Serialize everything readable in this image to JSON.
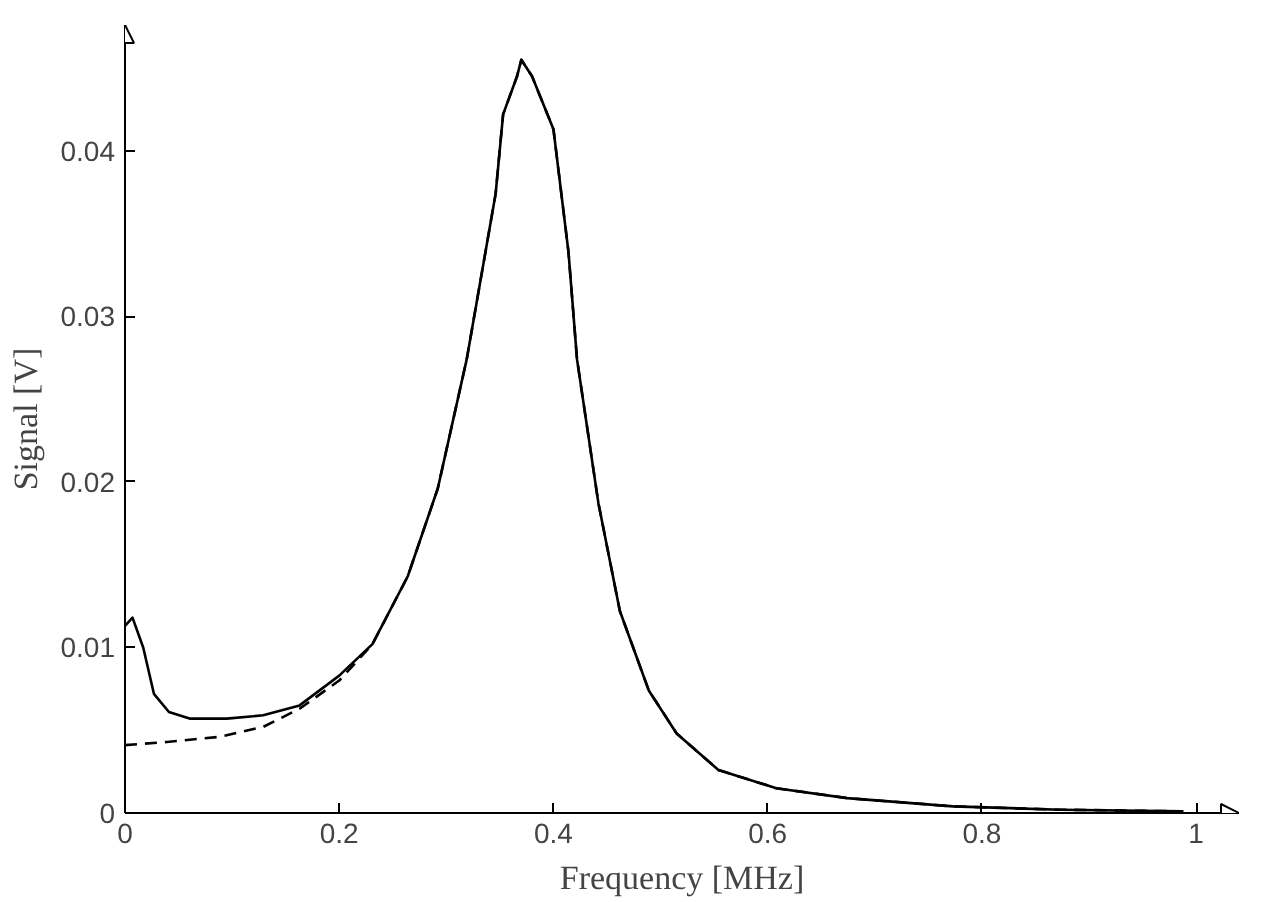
{
  "chart_data": {
    "type": "line",
    "xlabel": "Frequency [MHz]",
    "ylabel": "Signal [V]",
    "xlim": [
      0,
      1.04
    ],
    "ylim": [
      0,
      0.0476
    ],
    "xticks": [
      0,
      0.2,
      0.4,
      0.6,
      0.8,
      1
    ],
    "yticks": [
      0,
      0.01,
      0.02,
      0.03,
      0.04
    ],
    "grid": false,
    "series": [
      {
        "color": "#000000",
        "line_style": "solid",
        "x": [
          0,
          0.007,
          0.017,
          0.027,
          0.041,
          0.061,
          0.095,
          0.129,
          0.163,
          0.2,
          0.231,
          0.264,
          0.292,
          0.319,
          0.346,
          0.353,
          0.366,
          0.37,
          0.38,
          0.4,
          0.414,
          0.422,
          0.442,
          0.462,
          0.489,
          0.515,
          0.554,
          0.608,
          0.674,
          0.773,
          0.873,
          0.988
        ],
        "values": [
          0.0113,
          0.0118,
          0.01,
          0.0072,
          0.0061,
          0.0057,
          0.0057,
          0.0059,
          0.0065,
          0.0083,
          0.0102,
          0.0143,
          0.0196,
          0.0274,
          0.0374,
          0.0422,
          0.0445,
          0.0455,
          0.0445,
          0.0413,
          0.0339,
          0.0274,
          0.0187,
          0.0122,
          0.0074,
          0.0048,
          0.0026,
          0.0015,
          0.0009,
          0.0004,
          0.0002,
          0.0001
        ]
      },
      {
        "color": "#000000",
        "line_style": "dashed",
        "x": [
          0,
          0.041,
          0.088,
          0.129,
          0.163,
          0.2,
          0.231,
          0.264,
          0.292,
          0.319,
          0.346,
          0.353,
          0.366,
          0.37,
          0.38,
          0.4,
          0.414,
          0.422,
          0.442,
          0.462,
          0.489,
          0.515,
          0.554,
          0.608,
          0.674,
          0.773,
          0.873,
          0.988
        ],
        "values": [
          0.0041,
          0.0043,
          0.0046,
          0.0052,
          0.0063,
          0.008,
          0.0102,
          0.0143,
          0.0196,
          0.0274,
          0.0374,
          0.0422,
          0.0445,
          0.0455,
          0.0445,
          0.0413,
          0.0339,
          0.0274,
          0.0187,
          0.0122,
          0.0074,
          0.0048,
          0.0026,
          0.0015,
          0.0009,
          0.0004,
          0.0002,
          0.0001
        ]
      }
    ]
  }
}
